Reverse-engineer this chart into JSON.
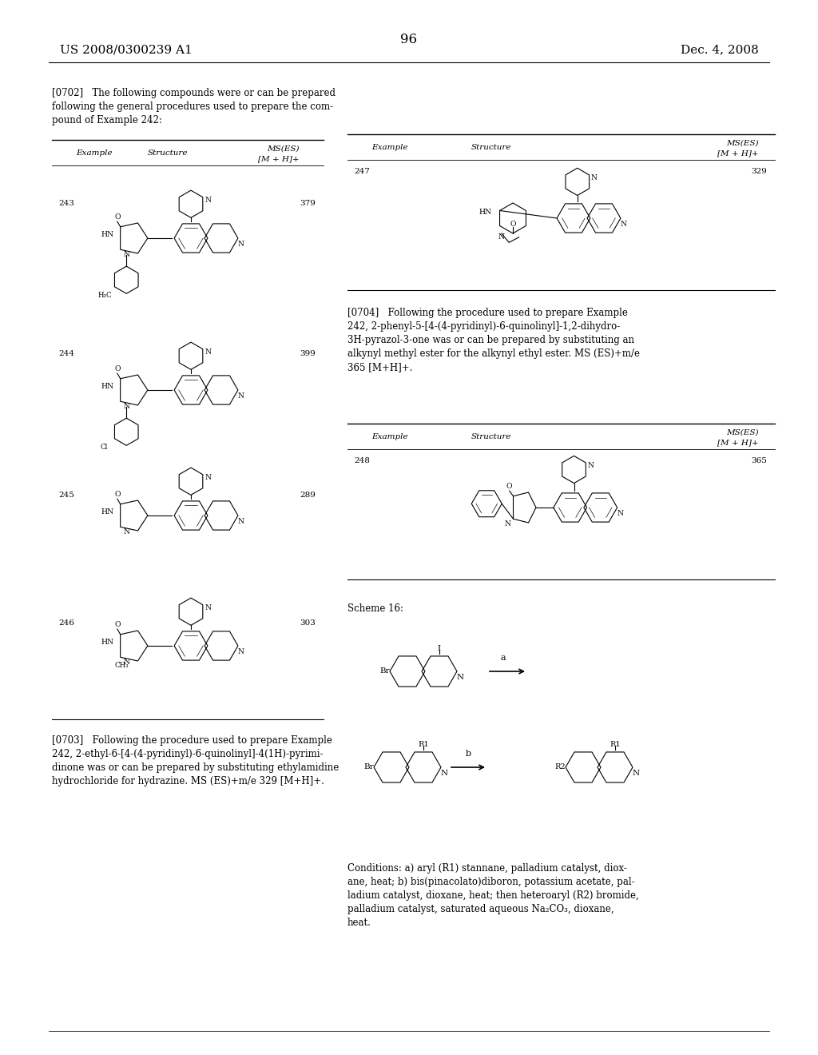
{
  "page_number": "96",
  "header_left": "US 2008/0300239 A1",
  "header_right": "Dec. 4, 2008",
  "background_color": "#ffffff",
  "text_color": "#000000",
  "font_size_header": 11,
  "font_size_body": 8.5,
  "font_size_small": 7.5,
  "left_paragraph_0702": "[0702]   The following compounds were or can be prepared\nfollowing the general procedures used to prepare the com-\npound of Example 242:",
  "left_table_headers": [
    "Example",
    "Structure",
    "MS(ES)\n[M + H]+"
  ],
  "left_examples": [
    {
      "number": "243",
      "ms": "379"
    },
    {
      "number": "244",
      "ms": "399"
    },
    {
      "number": "245",
      "ms": "289"
    },
    {
      "number": "246",
      "ms": "303"
    }
  ],
  "left_paragraph_0703": "[0703]   Following the procedure used to prepare Example\n242, 2-ethyl-6-[4-(4-pyridinyl)-6-quinolinyl]-4(1H)-pyrimi-\ndinone was or can be prepared by substituting ethylamidine\nhydrochloride for hydrazine. MS (ES)+m/e 329 [M+H]+.",
  "right_paragraph_0704": "[0704]   Following the procedure used to prepare Example\n242, 2-phenyl-5-[4-(4-pyridinyl)-6-quinolinyl]-1,2-dihydro-\n3H-pyrazol-3-one was or can be prepared by substituting an\nalkynyl methyl ester for the alkynyl ethyl ester. MS (ES)+m/e\n365 [M+H]+.",
  "right_table_headers_1": [
    "Example",
    "Structure",
    "MS(ES)\n[M + H]+"
  ],
  "right_examples_1": [
    {
      "number": "247",
      "ms": "329"
    }
  ],
  "right_table_headers_2": [
    "Example",
    "Structure",
    "MS(ES)\n[M + H]+"
  ],
  "right_examples_2": [
    {
      "number": "248",
      "ms": "365"
    }
  ],
  "scheme_label": "Scheme 16:",
  "conditions_text": "Conditions: a) aryl (R1) stannane, palladium catalyst, diox-\nane, heat; b) bis(pinacolato)diboron, potassium acetate, pal-\nladium catalyst, dioxane, heat; then heteroaryl (R2) bromide,\npalladium catalyst, saturated aqueous Na₂CO₃, dioxane,\nheat."
}
